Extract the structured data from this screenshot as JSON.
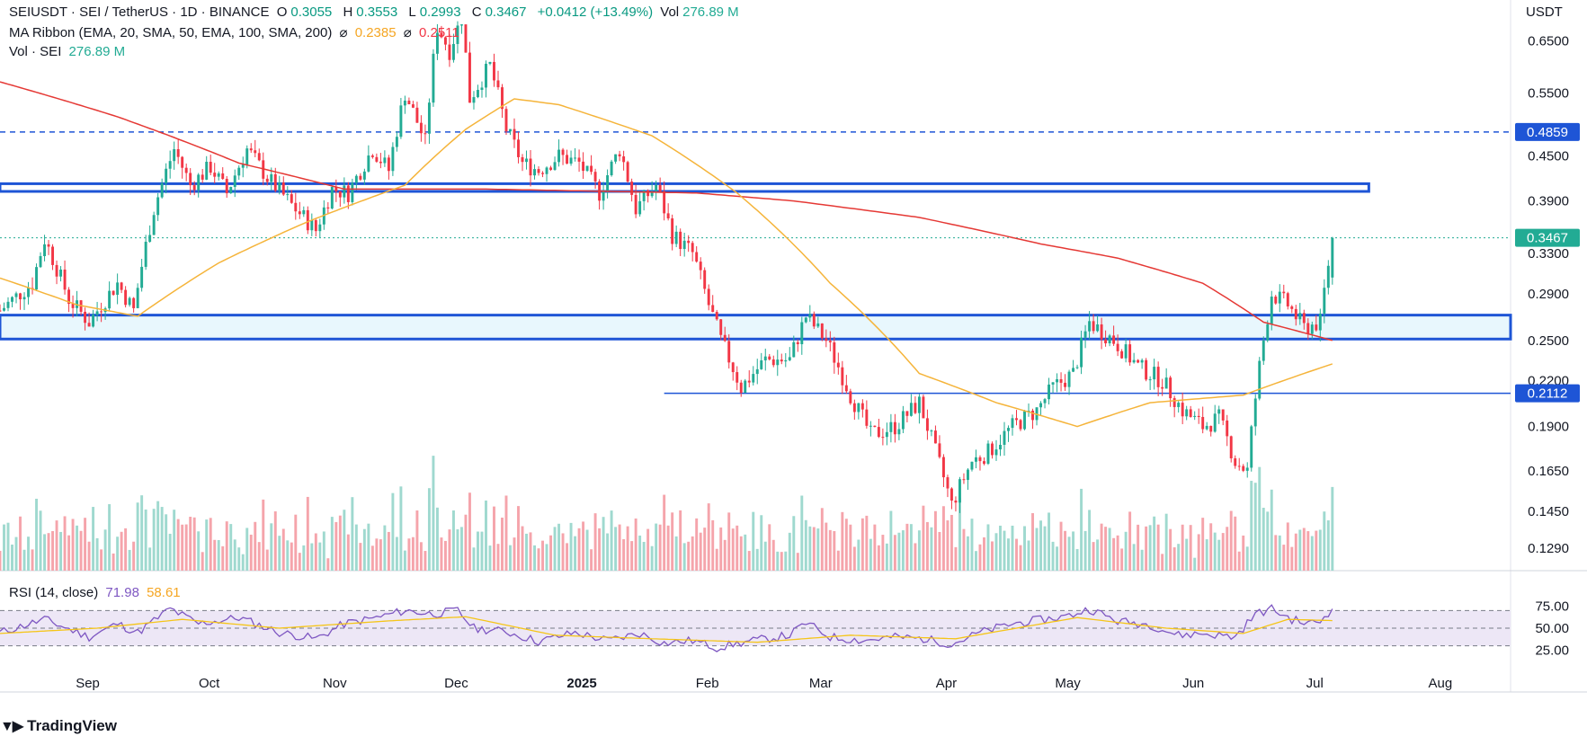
{
  "header": {
    "symbol_line": "SEIUSDT · SEI / TetherUS · 1D · BINANCE",
    "open_label": "O",
    "open": "0.3055",
    "high_label": "H",
    "high": "0.3553",
    "low_label": "L",
    "low": "0.2993",
    "close_label": "C",
    "close": "0.3467",
    "change": "+0.0412 (+13.49%)",
    "vol_label": "Vol",
    "vol": "276.89 M",
    "ma_line": "MA Ribbon (EMA, 20, SMA, 50, EMA, 100, SMA, 200)",
    "ma_val1": "0.2385",
    "ma_val2": "0.2511",
    "vol_line_label": "Vol · SEI",
    "vol_line_value": "276.89 M",
    "rsi_label": "RSI (14, close)",
    "rsi_value": "71.98",
    "rsi_ma": "58.61",
    "currency": "USDT"
  },
  "brand": "TradingView",
  "colors": {
    "up": "#22ab94",
    "down": "#f23645",
    "ma50": "#f5b43a",
    "ma200": "#e53935",
    "zone_line": "#1e55d6",
    "zone_fill": "#e8f7fd",
    "rsi": "#7e57c2",
    "rsi_ma": "#f5c518",
    "rsi_band": "#ede7f6"
  },
  "chart_data": {
    "type": "candlestick",
    "symbol": "SEIUSDT",
    "price_ticks": [
      0.65,
      0.55,
      0.45,
      0.39,
      0.33,
      0.29,
      0.25,
      0.22,
      0.19,
      0.165,
      0.145,
      0.129
    ],
    "price_scale": "log",
    "price_range": [
      0.12,
      0.74
    ],
    "x_labels": [
      {
        "label": "Sep",
        "date": "2024-09-01"
      },
      {
        "label": "Oct",
        "date": "2024-10-01"
      },
      {
        "label": "Nov",
        "date": "2024-11-01"
      },
      {
        "label": "Dec",
        "date": "2024-12-01"
      },
      {
        "label": "2025",
        "date": "2025-01-01",
        "bold": true
      },
      {
        "label": "Feb",
        "date": "2025-02-01"
      },
      {
        "label": "Mar",
        "date": "2025-03-01"
      },
      {
        "label": "Apr",
        "date": "2025-04-01"
      },
      {
        "label": "May",
        "date": "2025-05-01"
      },
      {
        "label": "Jun",
        "date": "2025-06-01"
      },
      {
        "label": "Jul",
        "date": "2025-07-01"
      },
      {
        "label": "Aug",
        "date": "2025-08-01"
      }
    ],
    "date_range": [
      "2024-08-17",
      "2025-08-25"
    ],
    "last_date": "2025-07-12",
    "price_anchors": [
      [
        "2024-08-17",
        0.275
      ],
      [
        "2024-08-25",
        0.3
      ],
      [
        "2024-08-28",
        0.345
      ],
      [
        "2024-09-03",
        0.285
      ],
      [
        "2024-09-08",
        0.265
      ],
      [
        "2024-09-15",
        0.3
      ],
      [
        "2024-09-19",
        0.275
      ],
      [
        "2024-09-24",
        0.38
      ],
      [
        "2024-09-29",
        0.46
      ],
      [
        "2024-10-03",
        0.41
      ],
      [
        "2024-10-08",
        0.435
      ],
      [
        "2024-10-12",
        0.4
      ],
      [
        "2024-10-17",
        0.46
      ],
      [
        "2024-10-22",
        0.42
      ],
      [
        "2024-10-28",
        0.385
      ],
      [
        "2024-11-03",
        0.355
      ],
      [
        "2024-11-07",
        0.405
      ],
      [
        "2024-11-11",
        0.4
      ],
      [
        "2024-11-17",
        0.46
      ],
      [
        "2024-11-21",
        0.43
      ],
      [
        "2024-11-25",
        0.55
      ],
      [
        "2024-11-30",
        0.47
      ],
      [
        "2024-12-03",
        0.68
      ],
      [
        "2024-12-06",
        0.63
      ],
      [
        "2024-12-09",
        0.7
      ],
      [
        "2024-12-11",
        0.54
      ],
      [
        "2024-12-16",
        0.6
      ],
      [
        "2024-12-20",
        0.49
      ],
      [
        "2024-12-24",
        0.44
      ],
      [
        "2024-12-28",
        0.43
      ],
      [
        "2025-01-02",
        0.45
      ],
      [
        "2025-01-07",
        0.44
      ],
      [
        "2025-01-12",
        0.4
      ],
      [
        "2025-01-17",
        0.46
      ],
      [
        "2025-01-21",
        0.38
      ],
      [
        "2025-01-26",
        0.41
      ],
      [
        "2025-01-30",
        0.35
      ],
      [
        "2025-02-04",
        0.33
      ],
      [
        "2025-02-08",
        0.28
      ],
      [
        "2025-02-11",
        0.25
      ],
      [
        "2025-02-16",
        0.215
      ],
      [
        "2025-02-22",
        0.235
      ],
      [
        "2025-02-28",
        0.235
      ],
      [
        "2025-03-04",
        0.27
      ],
      [
        "2025-03-09",
        0.25
      ],
      [
        "2025-03-15",
        0.21
      ],
      [
        "2025-03-20",
        0.185
      ],
      [
        "2025-03-26",
        0.19
      ],
      [
        "2025-04-01",
        0.205
      ],
      [
        "2025-04-05",
        0.175
      ],
      [
        "2025-04-09",
        0.148
      ],
      [
        "2025-04-14",
        0.17
      ],
      [
        "2025-04-18",
        0.175
      ],
      [
        "2025-04-24",
        0.19
      ],
      [
        "2025-04-30",
        0.2
      ],
      [
        "2025-05-04",
        0.215
      ],
      [
        "2025-05-09",
        0.225
      ],
      [
        "2025-05-13",
        0.265
      ],
      [
        "2025-05-19",
        0.25
      ],
      [
        "2025-05-25",
        0.23
      ],
      [
        "2025-05-31",
        0.22
      ],
      [
        "2025-06-05",
        0.2
      ],
      [
        "2025-06-10",
        0.19
      ],
      [
        "2025-06-14",
        0.195
      ],
      [
        "2025-06-18",
        0.17
      ],
      [
        "2025-06-21",
        0.165
      ],
      [
        "2025-06-24",
        0.23
      ],
      [
        "2025-06-27",
        0.29
      ],
      [
        "2025-07-01",
        0.28
      ],
      [
        "2025-07-05",
        0.26
      ],
      [
        "2025-07-09",
        0.265
      ],
      [
        "2025-07-12",
        0.3467
      ]
    ],
    "ma50_anchors": [
      [
        "2024-08-17",
        0.305
      ],
      [
        "2024-09-05",
        0.28
      ],
      [
        "2024-09-20",
        0.27
      ],
      [
        "2024-10-10",
        0.32
      ],
      [
        "2024-11-01",
        0.365
      ],
      [
        "2024-11-25",
        0.41
      ],
      [
        "2024-12-10",
        0.49
      ],
      [
        "2024-12-22",
        0.54
      ],
      [
        "2025-01-02",
        0.53
      ],
      [
        "2025-01-25",
        0.48
      ],
      [
        "2025-02-15",
        0.4
      ],
      [
        "2025-03-10",
        0.3
      ],
      [
        "2025-04-01",
        0.225
      ],
      [
        "2025-04-20",
        0.205
      ],
      [
        "2025-05-10",
        0.19
      ],
      [
        "2025-05-28",
        0.205
      ],
      [
        "2025-06-20",
        0.21
      ],
      [
        "2025-07-12",
        0.232
      ]
    ],
    "ma200_anchors": [
      [
        "2024-08-17",
        0.57
      ],
      [
        "2024-09-15",
        0.51
      ],
      [
        "2024-10-15",
        0.44
      ],
      [
        "2024-11-10",
        0.405
      ],
      [
        "2024-12-15",
        0.405
      ],
      [
        "2025-01-15",
        0.402
      ],
      [
        "2025-02-05",
        0.4
      ],
      [
        "2025-03-01",
        0.39
      ],
      [
        "2025-04-01",
        0.37
      ],
      [
        "2025-05-01",
        0.34
      ],
      [
        "2025-05-20",
        0.325
      ],
      [
        "2025-06-10",
        0.3
      ],
      [
        "2025-06-25",
        0.265
      ],
      [
        "2025-07-12",
        0.25
      ]
    ],
    "rsi": {
      "ticks": [
        75.0,
        50.0,
        25.0
      ],
      "bands": [
        70,
        50,
        30
      ],
      "anchors": [
        [
          "2024-08-17",
          45
        ],
        [
          "2024-08-28",
          60
        ],
        [
          "2024-09-08",
          40
        ],
        [
          "2024-09-15",
          55
        ],
        [
          "2024-09-20",
          45
        ],
        [
          "2024-09-28",
          72
        ],
        [
          "2024-10-05",
          55
        ],
        [
          "2024-10-15",
          62
        ],
        [
          "2024-10-25",
          45
        ],
        [
          "2024-11-03",
          38
        ],
        [
          "2024-11-10",
          55
        ],
        [
          "2024-11-18",
          62
        ],
        [
          "2024-11-25",
          70
        ],
        [
          "2024-12-02",
          66
        ],
        [
          "2024-12-08",
          70
        ],
        [
          "2024-12-12",
          50
        ],
        [
          "2024-12-20",
          46
        ],
        [
          "2024-12-28",
          35
        ],
        [
          "2025-01-06",
          45
        ],
        [
          "2025-01-14",
          36
        ],
        [
          "2025-01-22",
          44
        ],
        [
          "2025-01-28",
          33
        ],
        [
          "2025-02-04",
          36
        ],
        [
          "2025-02-10",
          28
        ],
        [
          "2025-02-18",
          35
        ],
        [
          "2025-02-28",
          42
        ],
        [
          "2025-03-04",
          56
        ],
        [
          "2025-03-10",
          40
        ],
        [
          "2025-03-18",
          36
        ],
        [
          "2025-03-26",
          40
        ],
        [
          "2025-04-02",
          38
        ],
        [
          "2025-04-09",
          32
        ],
        [
          "2025-04-16",
          45
        ],
        [
          "2025-04-24",
          55
        ],
        [
          "2025-05-02",
          60
        ],
        [
          "2025-05-08",
          64
        ],
        [
          "2025-05-13",
          72
        ],
        [
          "2025-05-20",
          58
        ],
        [
          "2025-05-28",
          54
        ],
        [
          "2025-06-04",
          42
        ],
        [
          "2025-06-10",
          44
        ],
        [
          "2025-06-18",
          40
        ],
        [
          "2025-06-23",
          66
        ],
        [
          "2025-06-27",
          72
        ],
        [
          "2025-07-02",
          60
        ],
        [
          "2025-07-06",
          55
        ],
        [
          "2025-07-09",
          58
        ],
        [
          "2025-07-12",
          71.98
        ]
      ],
      "ma_anchors": [
        [
          "2024-08-17",
          44
        ],
        [
          "2024-09-10",
          50
        ],
        [
          "2024-10-01",
          60
        ],
        [
          "2024-10-25",
          50
        ],
        [
          "2024-11-20",
          58
        ],
        [
          "2024-12-10",
          63
        ],
        [
          "2025-01-01",
          42
        ],
        [
          "2025-01-25",
          38
        ],
        [
          "2025-02-20",
          34
        ],
        [
          "2025-03-15",
          42
        ],
        [
          "2025-04-10",
          38
        ],
        [
          "2025-05-10",
          62
        ],
        [
          "2025-06-01",
          50
        ],
        [
          "2025-06-20",
          44
        ],
        [
          "2025-07-01",
          60
        ],
        [
          "2025-07-12",
          58.61
        ]
      ]
    },
    "levels": [
      {
        "value": 0.4859,
        "style": "dashed",
        "label": "0.4859"
      },
      {
        "value": 0.3467,
        "style": "dotted",
        "label": "0.3467",
        "current": true
      },
      {
        "value": 0.2112,
        "style": "solid",
        "label": "0.2112",
        "start": "2025-01-28"
      }
    ],
    "zones": [
      {
        "from": 0.402,
        "to": 0.412,
        "end": "2025-07-21"
      },
      {
        "from": 0.2511,
        "to": 0.271
      }
    ]
  }
}
